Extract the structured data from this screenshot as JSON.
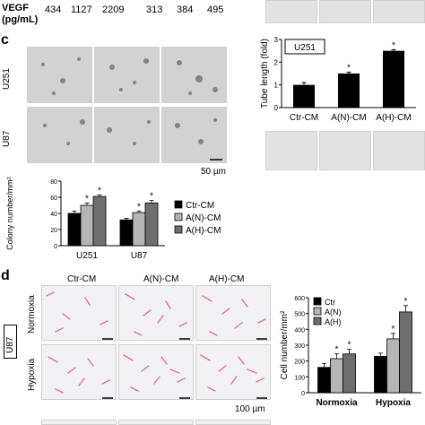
{
  "top_row": {
    "vegf_label": "VEGF",
    "unit_label": "(pg/mL)",
    "values": [
      "434",
      "1127",
      "2209",
      "313",
      "384",
      "495"
    ]
  },
  "panel_c": {
    "letter": "c",
    "row_labels": [
      "U251",
      "U87"
    ],
    "scale_label": "50 µm"
  },
  "panel_d": {
    "letter": "d",
    "col_labels": [
      "Ctr-CM",
      "A(N)-CM",
      "A(H)-CM"
    ],
    "row_labels": [
      "Normoxia",
      "Hypoxia"
    ],
    "side_label": "U87",
    "scale_label": "100 µm"
  },
  "chart_data": [
    {
      "type": "bar",
      "ylabel": "Tube length (fold)",
      "inset_label": "U251",
      "categories": [
        "Ctr-CM",
        "A(N)-CM",
        "A(H)-CM"
      ],
      "values": [
        1.0,
        1.5,
        2.5
      ],
      "errors": [
        0.1,
        0.06,
        0.05
      ],
      "significance": [
        "",
        "*",
        "*"
      ],
      "ylim": [
        0,
        3
      ],
      "yticks": [
        0,
        1,
        2,
        3
      ],
      "colors": [
        "#000000",
        "#000000",
        "#000000"
      ]
    },
    {
      "type": "bar",
      "ylabel": "Colony number/mm²",
      "categories": [
        "U251",
        "U87"
      ],
      "series": [
        {
          "name": "Ctr-CM",
          "values": [
            40,
            32
          ],
          "errors": [
            3,
            2
          ],
          "color": "#000000"
        },
        {
          "name": "A(N)-CM",
          "values": [
            50,
            41
          ],
          "errors": [
            3,
            2
          ],
          "color": "#b5b5b5"
        },
        {
          "name": "A(H)-CM",
          "values": [
            61,
            53
          ],
          "errors": [
            2,
            3
          ],
          "color": "#6e6e6e"
        }
      ],
      "significance": [
        [
          "",
          "*",
          "*"
        ],
        [
          "",
          "*",
          "*"
        ]
      ],
      "ylim": [
        0,
        80
      ],
      "yticks": [
        0,
        20,
        40,
        60,
        80
      ],
      "legend": "right"
    },
    {
      "type": "bar",
      "ylabel": "Cell number/mm²",
      "categories": [
        "Normoxia",
        "Hypoxia"
      ],
      "series": [
        {
          "name": "Ctr",
          "values": [
            160,
            230
          ],
          "errors": [
            25,
            20
          ],
          "color": "#000000"
        },
        {
          "name": "A(N)",
          "values": [
            215,
            340
          ],
          "errors": [
            30,
            35
          ],
          "color": "#b5b5b5"
        },
        {
          "name": "A(H)",
          "values": [
            245,
            510
          ],
          "errors": [
            30,
            40
          ],
          "color": "#6e6e6e"
        }
      ],
      "significance": [
        [
          "",
          "*",
          "*"
        ],
        [
          "",
          "*",
          "*"
        ]
      ],
      "ylim": [
        0,
        600
      ],
      "yticks": [
        0,
        100,
        200,
        300,
        400,
        500,
        600
      ],
      "legend": "top-left"
    }
  ]
}
